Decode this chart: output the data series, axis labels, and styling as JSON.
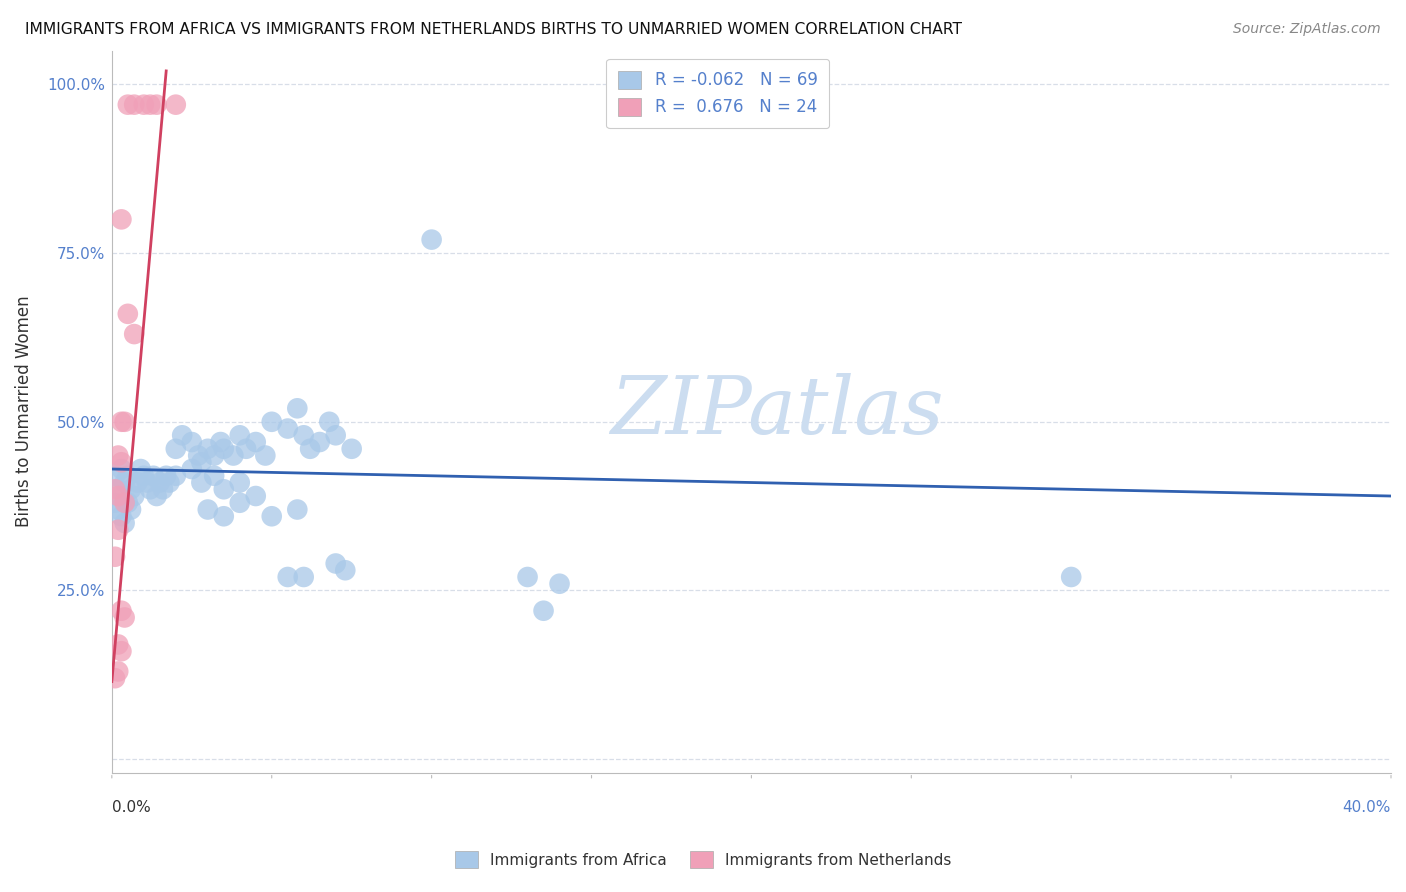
{
  "title": "IMMIGRANTS FROM AFRICA VS IMMIGRANTS FROM NETHERLANDS BIRTHS TO UNMARRIED WOMEN CORRELATION CHART",
  "source": "Source: ZipAtlas.com",
  "ylabel": "Births to Unmarried Women",
  "x_range": [
    0.0,
    0.4
  ],
  "y_range": [
    -0.02,
    1.05
  ],
  "blue_color": "#a8c8e8",
  "pink_color": "#f0a0b8",
  "blue_line_color": "#3060b0",
  "pink_line_color": "#d04060",
  "blue_dots": [
    [
      0.001,
      0.42
    ],
    [
      0.002,
      0.4
    ],
    [
      0.003,
      0.43
    ],
    [
      0.004,
      0.41
    ],
    [
      0.005,
      0.42
    ],
    [
      0.006,
      0.4
    ],
    [
      0.007,
      0.39
    ],
    [
      0.008,
      0.41
    ],
    [
      0.009,
      0.43
    ],
    [
      0.01,
      0.42
    ],
    [
      0.011,
      0.41
    ],
    [
      0.012,
      0.4
    ],
    [
      0.013,
      0.42
    ],
    [
      0.014,
      0.39
    ],
    [
      0.015,
      0.41
    ],
    [
      0.016,
      0.4
    ],
    [
      0.017,
      0.42
    ],
    [
      0.018,
      0.41
    ],
    [
      0.001,
      0.38
    ],
    [
      0.002,
      0.37
    ],
    [
      0.003,
      0.36
    ],
    [
      0.004,
      0.35
    ],
    [
      0.005,
      0.38
    ],
    [
      0.006,
      0.37
    ],
    [
      0.02,
      0.46
    ],
    [
      0.022,
      0.48
    ],
    [
      0.025,
      0.47
    ],
    [
      0.027,
      0.45
    ],
    [
      0.028,
      0.44
    ],
    [
      0.03,
      0.46
    ],
    [
      0.032,
      0.45
    ],
    [
      0.034,
      0.47
    ],
    [
      0.035,
      0.46
    ],
    [
      0.038,
      0.45
    ],
    [
      0.04,
      0.48
    ],
    [
      0.042,
      0.46
    ],
    [
      0.045,
      0.47
    ],
    [
      0.048,
      0.45
    ],
    [
      0.05,
      0.5
    ],
    [
      0.055,
      0.49
    ],
    [
      0.058,
      0.52
    ],
    [
      0.06,
      0.48
    ],
    [
      0.062,
      0.46
    ],
    [
      0.065,
      0.47
    ],
    [
      0.068,
      0.5
    ],
    [
      0.07,
      0.48
    ],
    [
      0.075,
      0.46
    ],
    [
      0.02,
      0.42
    ],
    [
      0.025,
      0.43
    ],
    [
      0.028,
      0.41
    ],
    [
      0.032,
      0.42
    ],
    [
      0.035,
      0.4
    ],
    [
      0.04,
      0.41
    ],
    [
      0.045,
      0.39
    ],
    [
      0.03,
      0.37
    ],
    [
      0.035,
      0.36
    ],
    [
      0.04,
      0.38
    ],
    [
      0.05,
      0.36
    ],
    [
      0.058,
      0.37
    ],
    [
      0.055,
      0.27
    ],
    [
      0.06,
      0.27
    ],
    [
      0.07,
      0.29
    ],
    [
      0.073,
      0.28
    ],
    [
      0.1,
      0.77
    ],
    [
      0.13,
      0.27
    ],
    [
      0.135,
      0.22
    ],
    [
      0.14,
      0.26
    ],
    [
      0.3,
      0.27
    ]
  ],
  "pink_dots": [
    [
      0.005,
      0.97
    ],
    [
      0.007,
      0.97
    ],
    [
      0.01,
      0.97
    ],
    [
      0.012,
      0.97
    ],
    [
      0.014,
      0.97
    ],
    [
      0.02,
      0.97
    ],
    [
      0.003,
      0.8
    ],
    [
      0.005,
      0.66
    ],
    [
      0.007,
      0.63
    ],
    [
      0.003,
      0.5
    ],
    [
      0.004,
      0.5
    ],
    [
      0.002,
      0.45
    ],
    [
      0.003,
      0.44
    ],
    [
      0.001,
      0.4
    ],
    [
      0.002,
      0.39
    ],
    [
      0.004,
      0.38
    ],
    [
      0.001,
      0.3
    ],
    [
      0.003,
      0.22
    ],
    [
      0.004,
      0.21
    ],
    [
      0.002,
      0.17
    ],
    [
      0.003,
      0.16
    ],
    [
      0.001,
      0.12
    ],
    [
      0.002,
      0.13
    ],
    [
      0.002,
      0.34
    ]
  ],
  "blue_trend_x": [
    0.0,
    0.4
  ],
  "blue_trend_y": [
    0.43,
    0.39
  ],
  "pink_trend_x": [
    0.0,
    0.017
  ],
  "pink_trend_y": [
    0.115,
    1.02
  ],
  "watermark": "ZIPatlas",
  "watermark_color": "#ccddf0",
  "background_color": "#ffffff",
  "grid_color": "#d8dee8",
  "title_color": "#111111",
  "source_color": "#888888",
  "axis_color": "#5580cc",
  "label_color": "#333333",
  "y_ticks": [
    0.0,
    0.25,
    0.5,
    0.75,
    1.0
  ],
  "y_tick_labels": [
    "",
    "25.0%",
    "50.0%",
    "75.0%",
    "100.0%"
  ]
}
